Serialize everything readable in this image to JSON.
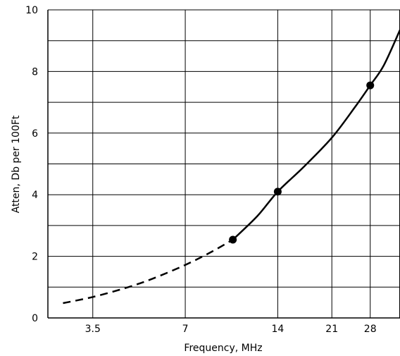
{
  "chart_data": {
    "type": "line",
    "title": "",
    "xlabel": "Frequency, MHz",
    "ylabel": "Atten, Db per 100Ft",
    "x_scale": "log",
    "xlim": [
      2.5,
      35
    ],
    "ylim": [
      0,
      10
    ],
    "x_ticks": [
      {
        "value": 3.5,
        "label": "3.5"
      },
      {
        "value": 7,
        "label": "7"
      },
      {
        "value": 14,
        "label": "14"
      },
      {
        "value": 21,
        "label": "21"
      },
      {
        "value": 28,
        "label": "28"
      }
    ],
    "y_ticks": [
      {
        "value": 0,
        "label": "0"
      },
      {
        "value": 2,
        "label": "2"
      },
      {
        "value": 4,
        "label": "4"
      },
      {
        "value": 6,
        "label": "6"
      },
      {
        "value": 8,
        "label": "8"
      },
      {
        "value": 10,
        "label": "10"
      }
    ],
    "grid": true,
    "series": [
      {
        "style": "dashed",
        "x": [
          2.8,
          3.5,
          4.5,
          5.5,
          7.0,
          8.5,
          10.0
        ],
        "y": [
          0.48,
          0.68,
          0.98,
          1.28,
          1.72,
          2.14,
          2.54
        ]
      },
      {
        "style": "solid",
        "x": [
          10.0,
          12.0,
          14.0,
          17.0,
          21.0,
          25.0,
          28.0,
          31.0,
          35.0
        ],
        "y": [
          2.54,
          3.3,
          4.1,
          4.9,
          5.85,
          6.85,
          7.55,
          8.2,
          9.35
        ]
      }
    ],
    "points": {
      "x": [
        10.0,
        14.0,
        28.0
      ],
      "y": [
        2.54,
        4.1,
        7.55
      ]
    }
  }
}
